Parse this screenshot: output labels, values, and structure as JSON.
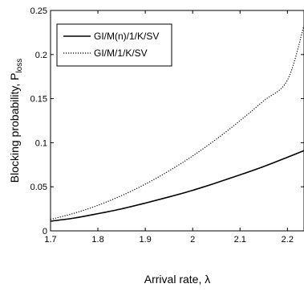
{
  "chart_data": {
    "type": "line",
    "xlabel": "Arrival rate, λ",
    "ylabel_main": "Blocking probability, P",
    "ylabel_sub": "loss",
    "xlim": [
      1.7,
      2.235
    ],
    "ylim": [
      0,
      0.25
    ],
    "xticks": [
      1.7,
      1.8,
      1.9,
      2.0,
      2.1,
      2.2
    ],
    "xtick_labels": [
      "1.7",
      "1.8",
      "1.9",
      "2",
      "2.1",
      "2.2"
    ],
    "yticks": [
      0,
      0.05,
      0.1,
      0.15,
      0.2,
      0.25
    ],
    "ytick_labels": [
      "0",
      "0.05",
      "0.1",
      "0.15",
      "0.2",
      "0.25"
    ],
    "legend_position": "top-left",
    "grid": false,
    "series": [
      {
        "name": "GI/M(n)/1/K/SV",
        "style": "solid",
        "color": "#000000",
        "x": [
          1.7,
          1.75,
          1.8,
          1.85,
          1.9,
          1.95,
          2.0,
          2.05,
          2.1,
          2.15,
          2.2,
          2.235
        ],
        "y": [
          0.011,
          0.0145,
          0.0195,
          0.025,
          0.0315,
          0.0385,
          0.046,
          0.0545,
          0.0635,
          0.073,
          0.0835,
          0.091
        ]
      },
      {
        "name": "GI/M/1/K/SV",
        "style": "dotted",
        "color": "#000000",
        "x": [
          1.7,
          1.75,
          1.8,
          1.85,
          1.9,
          1.95,
          2.0,
          2.05,
          2.1,
          2.15,
          2.2,
          2.235
        ],
        "y": [
          0.013,
          0.02,
          0.029,
          0.04,
          0.053,
          0.068,
          0.085,
          0.104,
          0.125,
          0.1475,
          0.171,
          0.233
        ]
      }
    ]
  }
}
